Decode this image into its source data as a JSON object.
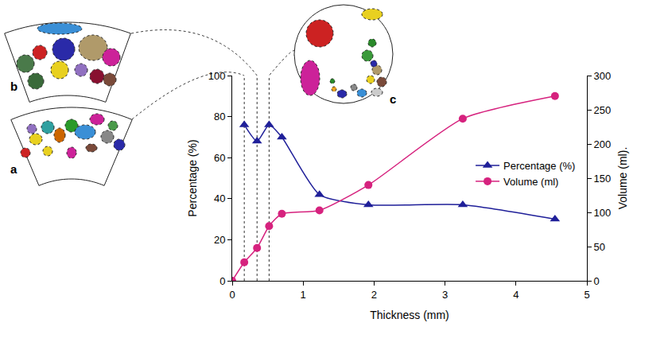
{
  "chart_data": {
    "type": "line",
    "xlabel": "Thickness (mm)",
    "ylabel": "Percentage (%)",
    "y2label": "Volume (ml).",
    "xlim": [
      0,
      5
    ],
    "xticks": [
      0,
      1,
      2,
      3,
      4,
      5
    ],
    "ylim": [
      0,
      100
    ],
    "yticks": [
      0,
      20,
      40,
      60,
      80,
      100
    ],
    "y2lim": [
      0,
      300
    ],
    "y2ticks": [
      0,
      50,
      100,
      150,
      200,
      250,
      300
    ],
    "grid": false,
    "legend": "right",
    "series": [
      {
        "name": "Percentage (%)",
        "color": "#1f1f99",
        "marker": "triangle-up",
        "x": [
          0.17,
          0.35,
          0.52,
          0.7,
          1.23,
          1.92,
          3.25,
          4.55
        ],
        "values": [
          76,
          68,
          76,
          70,
          42,
          37,
          37,
          30
        ]
      },
      {
        "name": "Volume (ml)",
        "color": "#d6227e",
        "marker": "circle",
        "axis": "y2",
        "x": [
          0,
          0.17,
          0.35,
          0.52,
          0.7,
          1.23,
          1.92,
          3.25,
          4.55
        ],
        "values": [
          0,
          27,
          48,
          80,
          98,
          103,
          140,
          237,
          270
        ]
      }
    ],
    "annotations": [
      {
        "text": "a"
      },
      {
        "text": "b"
      },
      {
        "text": "c"
      }
    ]
  }
}
